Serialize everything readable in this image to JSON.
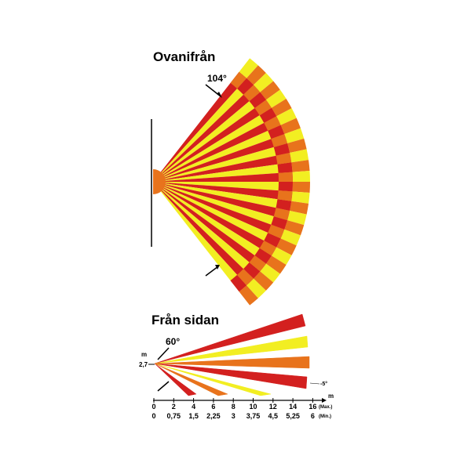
{
  "top_view": {
    "title": "Ovanifrån",
    "angle_label": "104°"
  },
  "side_view": {
    "title": "Från sidan",
    "angle_label": "60°",
    "height_unit": "m",
    "height_label": "2,7",
    "tilt_label": "-5°",
    "distance_unit": "m",
    "max_ticks": [
      "0",
      "2",
      "4",
      "6",
      "8",
      "10",
      "12",
      "14",
      "16"
    ],
    "max_label": "(Max.)",
    "min_ticks": [
      "0",
      "0,75",
      "1,5",
      "2,25",
      "3",
      "3,75",
      "4,5",
      "5,25",
      "6"
    ],
    "min_label": "(Min.)"
  }
}
